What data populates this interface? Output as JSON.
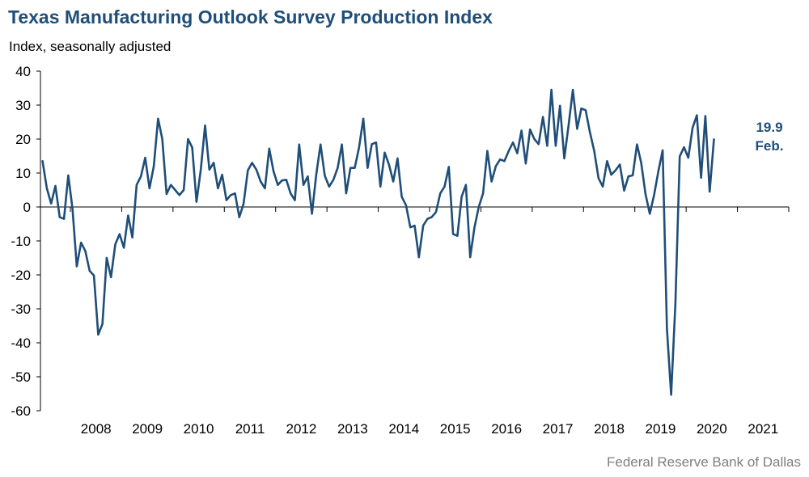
{
  "title": "Texas Manufacturing Outlook Survey Production Index",
  "subtitle": "Index, seasonally adjusted",
  "credit": "Federal Reserve Bank of Dallas",
  "colors": {
    "line": "#1f4e79",
    "title": "#1f4e79",
    "credit": "#7f7f7f",
    "axis": "#000000"
  },
  "chart_data": {
    "type": "line",
    "title": "Texas Manufacturing Outlook Survey Production Index",
    "ylabel": "Index, seasonally adjusted",
    "xlabel": "",
    "ylim": [
      -60,
      40
    ],
    "yticks": [
      40,
      30,
      20,
      10,
      0,
      -10,
      -20,
      -30,
      -40,
      -50,
      -60
    ],
    "xticks": [
      "2008",
      "2009",
      "2010",
      "2011",
      "2012",
      "2013",
      "2014",
      "2015",
      "2016",
      "2017",
      "2018",
      "2019",
      "2020",
      "2021"
    ],
    "grid": false,
    "start": "2007-06",
    "end": "2021-02",
    "annotation": {
      "value": "19.9",
      "label": "Feb."
    },
    "series": [
      {
        "values": [
          13.5,
          5.5,
          1,
          6.2,
          -3,
          -3.5,
          9.3,
          -0.5,
          -17.5,
          -10.5,
          -13,
          -18.8,
          -20.2,
          -37.6,
          -34.5,
          -15,
          -20.7,
          -11,
          -8,
          -12,
          -2.5,
          -9,
          6.5,
          9,
          14.5,
          5.5,
          12,
          26,
          20,
          3.8,
          6.5,
          5,
          3.5,
          5,
          20,
          17.5,
          1.5,
          11,
          24,
          11,
          13,
          5.5,
          9.5,
          2,
          3.5,
          4,
          -3,
          1,
          10.8,
          13,
          11,
          7.5,
          5.5,
          17.2,
          10.5,
          6.5,
          7.8,
          8,
          4,
          2,
          18.4,
          6.5,
          9,
          -2,
          9.5,
          18.4,
          9.2,
          6,
          8,
          11.5,
          18.4,
          4,
          11.5,
          11.5,
          17.5,
          26,
          11.5,
          18.5,
          19,
          6,
          16,
          12.5,
          7.5,
          14.3,
          3,
          0.5,
          -6,
          -5.5,
          -14.8,
          -5.5,
          -3.5,
          -3,
          -1.5,
          4,
          6,
          11.8,
          -8,
          -8.5,
          3,
          6.5,
          -14.8,
          -6,
          0,
          4,
          16.5,
          7.5,
          12,
          14,
          13.5,
          16.5,
          19,
          15.8,
          22.5,
          12.8,
          22.8,
          20,
          18.5,
          26.5,
          18,
          34.5,
          18,
          29.8,
          14.3,
          24,
          34.5,
          23,
          29,
          28.5,
          22,
          16.5,
          8.5,
          6,
          13.5,
          9.5,
          10.8,
          12.5,
          4.8,
          9,
          9.3,
          18.4,
          13,
          3.8,
          -2,
          3.5,
          10.5,
          16.7,
          -35.9,
          -55.3,
          -28.2,
          14.9,
          17.6,
          14.5,
          23.3,
          27.0,
          8.6,
          26.8,
          4.5,
          19.9
        ]
      }
    ]
  }
}
